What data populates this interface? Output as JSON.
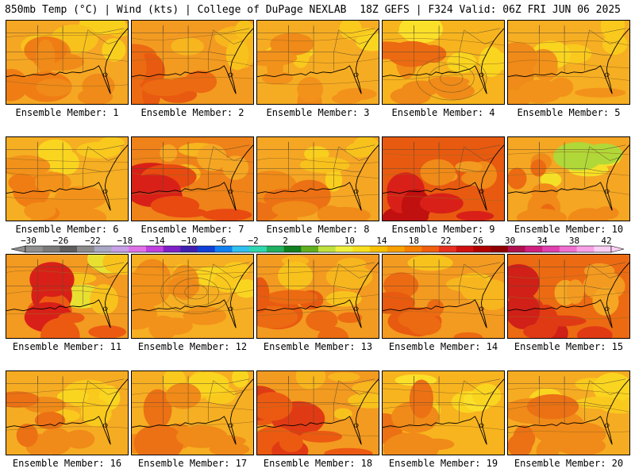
{
  "header": {
    "left": "850mb Temp (°C) | Wind (kts) | College of DuPage NEXLAB",
    "right": "18Z GEFS | F324 Valid: 06Z FRI JUN 06 2025"
  },
  "colorbar": {
    "labels": [
      "−30",
      "−26",
      "−22",
      "−18",
      "−14",
      "−10",
      "−6",
      "−2",
      "2",
      "6",
      "10",
      "14",
      "18",
      "22",
      "26",
      "30",
      "34",
      "38",
      "42"
    ],
    "label_values": [
      -30,
      -26,
      -22,
      -18,
      -14,
      -10,
      -6,
      -2,
      2,
      6,
      10,
      14,
      18,
      22,
      26,
      30,
      34,
      38,
      42
    ],
    "colors": [
      "#909090",
      "#7a7a7a",
      "#5e5e5e",
      "#8c8c8c",
      "#a8a8c4",
      "#c8a0e8",
      "#e070e8",
      "#c040e0",
      "#8020c8",
      "#4020b0",
      "#1040d8",
      "#1080f0",
      "#30c0f0",
      "#30d8b0",
      "#20b060",
      "#108020",
      "#60b020",
      "#c0e040",
      "#f0f040",
      "#f8e020",
      "#f8c000",
      "#f8a000",
      "#f88000",
      "#f06010",
      "#e83020",
      "#d01010",
      "#b00000",
      "#900000",
      "#b01050",
      "#d02080",
      "#e040b0",
      "#f070d0",
      "#f8a0e8",
      "#fcd0f4"
    ]
  },
  "members": [
    {
      "caption": "Ensemble Member: 1",
      "base": "#f5a623",
      "hot": [
        "#f08a18",
        "#ef7d14"
      ],
      "cool": [
        "#f8c21c",
        "#f9cf1e"
      ]
    },
    {
      "caption": "Ensemble Member: 2",
      "base": "#f39a20",
      "hot": [
        "#ec6a12",
        "#e85a10"
      ],
      "cool": [
        "#f7b51e",
        "#f8c21c"
      ]
    },
    {
      "caption": "Ensemble Member: 3",
      "base": "#f6ac22",
      "hot": [
        "#f2921a",
        "#f08a18"
      ],
      "cool": [
        "#f9c91d",
        "#fad520"
      ]
    },
    {
      "caption": "Ensemble Member: 4",
      "base": "#f7b41e",
      "hot": [
        "#f08a18",
        "#ec6a12"
      ],
      "cool": [
        "#fad520",
        "#fbe02a"
      ]
    },
    {
      "caption": "Ensemble Member: 5",
      "base": "#f6ae22",
      "hot": [
        "#f2921a",
        "#f08a18"
      ],
      "cool": [
        "#f9c91d",
        "#fad520"
      ]
    },
    {
      "caption": "Ensemble Member: 6",
      "base": "#f6ae22",
      "hot": [
        "#f2921a",
        "#ef7d14"
      ],
      "cool": [
        "#f9c91d",
        "#fad520"
      ]
    },
    {
      "caption": "Ensemble Member: 7",
      "base": "#ef8218",
      "hot": [
        "#e84a10",
        "#d82018"
      ],
      "cool": [
        "#f5a623",
        "#f7b51e"
      ]
    },
    {
      "caption": "Ensemble Member: 8",
      "base": "#f5a623",
      "hot": [
        "#f08a18",
        "#ec7014"
      ],
      "cool": [
        "#f8c21c",
        "#f9cf1e"
      ]
    },
    {
      "caption": "Ensemble Member: 9",
      "base": "#e85a10",
      "hot": [
        "#d82018",
        "#c01010"
      ],
      "cool": [
        "#f08a18",
        "#f39a20"
      ]
    },
    {
      "caption": "Ensemble Member: 10",
      "base": "#f5a623",
      "hot": [
        "#f08a18",
        "#ec6a12"
      ],
      "cool": [
        "#f5e028",
        "#b0d838"
      ]
    },
    {
      "caption": "Ensemble Member: 11",
      "base": "#f39a20",
      "hot": [
        "#ec5a12",
        "#d82018"
      ],
      "cool": [
        "#f8c21c",
        "#e8e030"
      ]
    },
    {
      "caption": "Ensemble Member: 12",
      "base": "#f6ae22",
      "hot": [
        "#f2921a",
        "#f08a18"
      ],
      "cool": [
        "#f9c91d",
        "#fad520"
      ]
    },
    {
      "caption": "Ensemble Member: 13",
      "base": "#f39a20",
      "hot": [
        "#ec6a12",
        "#e85a10"
      ],
      "cool": [
        "#f7b51e",
        "#f8c21c"
      ]
    },
    {
      "caption": "Ensemble Member: 14",
      "base": "#f39a20",
      "hot": [
        "#ec6a12",
        "#e85a10"
      ],
      "cool": [
        "#f7b51e",
        "#f8c21c"
      ]
    },
    {
      "caption": "Ensemble Member: 15",
      "base": "#ec6a12",
      "hot": [
        "#e03a14",
        "#d02018"
      ],
      "cool": [
        "#f39a20",
        "#f5a623"
      ]
    },
    {
      "caption": "Ensemble Member: 16",
      "base": "#f6ac22",
      "hot": [
        "#f08a18",
        "#ec7014"
      ],
      "cool": [
        "#f9c91d",
        "#fad520"
      ]
    },
    {
      "caption": "Ensemble Member: 17",
      "base": "#f6ae22",
      "hot": [
        "#f08a18",
        "#ec7014"
      ],
      "cool": [
        "#f9c91d",
        "#fad520"
      ]
    },
    {
      "caption": "Ensemble Member: 18",
      "base": "#f39a20",
      "hot": [
        "#ec5a12",
        "#e03a14"
      ],
      "cool": [
        "#f7b51e",
        "#f8c21c"
      ]
    },
    {
      "caption": "Ensemble Member: 19",
      "base": "#f7b41e",
      "hot": [
        "#f08a18",
        "#ec7014"
      ],
      "cool": [
        "#fad520",
        "#fbe02a"
      ]
    },
    {
      "caption": "Ensemble Member: 20",
      "base": "#f6ac22",
      "hot": [
        "#f08a18",
        "#ec7014"
      ],
      "cool": [
        "#f9c91d",
        "#fad520"
      ]
    }
  ]
}
